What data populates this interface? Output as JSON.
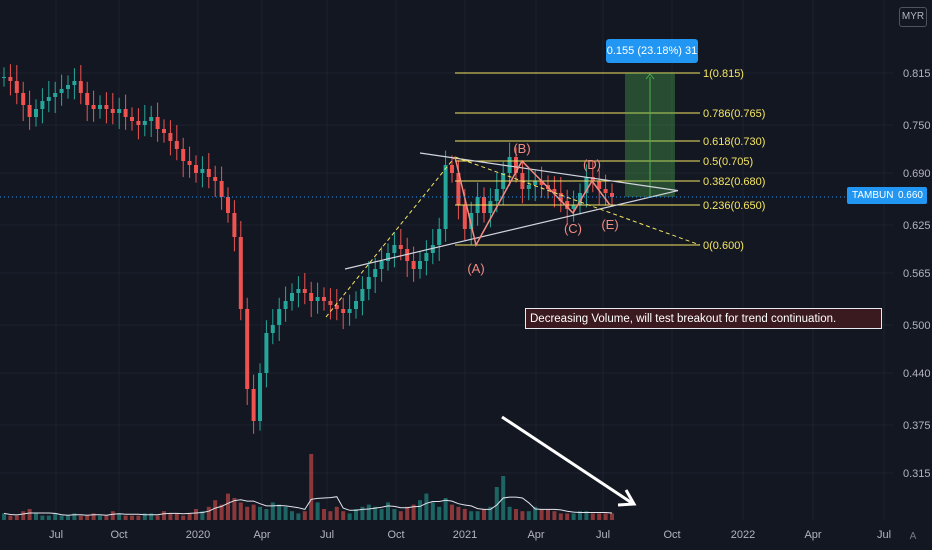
{
  "symbol": "TAMBUN",
  "currency": "MYR",
  "last_price": "0.660",
  "measure_label": "0.155 (23.18%) 31",
  "annotation": "Decreasing Volume, will test breakout for trend continuation.",
  "log_button": "A",
  "colors": {
    "background": "#131722",
    "up": "#26a69a",
    "down": "#ef5350",
    "fib": "#f5e663",
    "wave": "#f28b82",
    "accent": "#2196f3",
    "target_zone": "#4caf50"
  },
  "chart_data": {
    "type": "candlestick",
    "price_axis_labels": [
      "0.815",
      "0.750",
      "0.690",
      "0.625",
      "0.565",
      "0.500",
      "0.440",
      "0.375",
      "0.315"
    ],
    "time_axis_labels": [
      "Jul",
      "Oct",
      "2020",
      "Apr",
      "Jul",
      "Oct",
      "2021",
      "Apr",
      "Jul",
      "Oct",
      "2022",
      "Apr",
      "Jul"
    ],
    "fib_levels": [
      {
        "label": "1(0.815)",
        "value": 0.815
      },
      {
        "label": "0.786(0.765)",
        "value": 0.765
      },
      {
        "label": "0.618(0.730)",
        "value": 0.73
      },
      {
        "label": "0.5(0.705)",
        "value": 0.705
      },
      {
        "label": "0.382(0.680)",
        "value": 0.68
      },
      {
        "label": "0.236(0.650)",
        "value": 0.65
      },
      {
        "label": "0(0.600)",
        "value": 0.6
      }
    ],
    "wave_labels": [
      "(A)",
      "(B)",
      "(C)",
      "(D)",
      "(E)"
    ],
    "close_series": [
      0.81,
      0.805,
      0.79,
      0.775,
      0.76,
      0.77,
      0.78,
      0.785,
      0.79,
      0.795,
      0.8,
      0.805,
      0.79,
      0.775,
      0.77,
      0.775,
      0.77,
      0.765,
      0.77,
      0.76,
      0.755,
      0.75,
      0.755,
      0.76,
      0.745,
      0.74,
      0.73,
      0.72,
      0.705,
      0.7,
      0.69,
      0.695,
      0.685,
      0.68,
      0.66,
      0.64,
      0.61,
      0.52,
      0.42,
      0.38,
      0.44,
      0.49,
      0.5,
      0.52,
      0.53,
      0.54,
      0.545,
      0.54,
      0.53,
      0.535,
      0.53,
      0.525,
      0.52,
      0.515,
      0.52,
      0.53,
      0.545,
      0.56,
      0.57,
      0.58,
      0.59,
      0.6,
      0.595,
      0.58,
      0.57,
      0.58,
      0.59,
      0.6,
      0.62,
      0.7,
      0.69,
      0.65,
      0.62,
      0.64,
      0.66,
      0.64,
      0.655,
      0.67,
      0.69,
      0.71,
      0.69,
      0.67,
      0.675,
      0.68,
      0.675,
      0.67,
      0.665,
      0.655,
      0.645,
      0.65,
      0.665,
      0.685,
      0.68,
      0.67,
      0.665,
      0.66
    ],
    "volume_series": [
      3,
      2,
      2,
      4,
      5,
      3,
      2,
      2,
      3,
      2,
      2,
      3,
      2,
      2,
      3,
      2,
      2,
      4,
      3,
      2,
      2,
      2,
      3,
      3,
      2,
      4,
      3,
      3,
      2,
      3,
      5,
      4,
      6,
      9,
      7,
      12,
      10,
      8,
      6,
      7,
      6,
      5,
      8,
      7,
      6,
      4,
      3,
      4,
      30,
      8,
      5,
      4,
      6,
      4,
      3,
      5,
      6,
      7,
      6,
      5,
      8,
      5,
      4,
      6,
      7,
      9,
      12,
      8,
      6,
      10,
      7,
      6,
      5,
      4,
      4,
      5,
      6,
      15,
      20,
      6,
      5,
      4,
      4,
      6,
      5,
      5,
      4,
      3,
      3,
      3,
      4,
      4,
      3,
      3,
      3,
      3
    ]
  }
}
